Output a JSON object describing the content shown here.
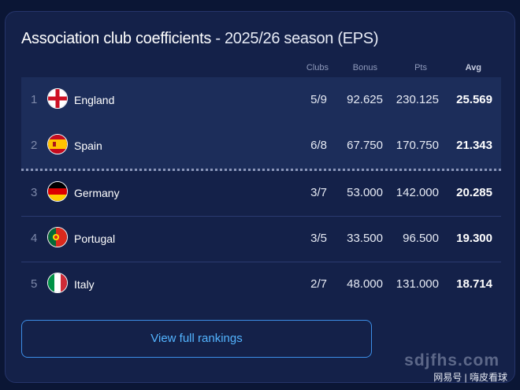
{
  "title": {
    "main": "Association club coefficients",
    "sub": " - 2025/26 season (EPS)"
  },
  "columns": {
    "clubs": "Clubs",
    "bonus": "Bonus",
    "pts": "Pts",
    "avg": "Avg"
  },
  "rows": [
    {
      "rank": "1",
      "country": "England",
      "flag": "england-flag-icon",
      "clubs": "5/9",
      "bonus": "92.625",
      "pts": "230.125",
      "avg": "25.569"
    },
    {
      "rank": "2",
      "country": "Spain",
      "flag": "spain-flag-icon",
      "clubs": "6/8",
      "bonus": "67.750",
      "pts": "170.750",
      "avg": "21.343"
    },
    {
      "rank": "3",
      "country": "Germany",
      "flag": "germany-flag-icon",
      "clubs": "3/7",
      "bonus": "53.000",
      "pts": "142.000",
      "avg": "20.285"
    },
    {
      "rank": "4",
      "country": "Portugal",
      "flag": "portugal-flag-icon",
      "clubs": "3/5",
      "bonus": "33.500",
      "pts": "96.500",
      "avg": "19.300"
    },
    {
      "rank": "5",
      "country": "Italy",
      "flag": "italy-flag-icon",
      "clubs": "2/7",
      "bonus": "48.000",
      "pts": "131.000",
      "avg": "18.714"
    }
  ],
  "button": {
    "label": "View full rankings"
  },
  "watermark": {
    "site": "sdjfhs.com",
    "source": "网易号 | 嗨皮看球"
  },
  "colors": {
    "background": "#0b1635",
    "card": "#142149",
    "highlight": "#1c2d5a",
    "accent": "#53b4ff"
  }
}
